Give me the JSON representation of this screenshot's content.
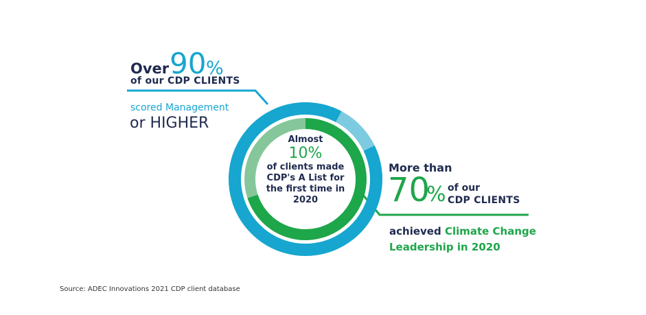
{
  "left_callout": {
    "prefix": "Over",
    "value": "90",
    "unit": "%",
    "line2": "of our CDP CLIENTS",
    "line3": "scored Management",
    "line4": "or HIGHER"
  },
  "center_callout": {
    "prefix": "Almost",
    "value": "10%",
    "line": "of clients made CDP's A List for the first time in 2020"
  },
  "right_callout": {
    "prefix": "More than",
    "value": "70",
    "unit": "%",
    "line2a": "of our",
    "line2b": "CDP CLIENTS",
    "line3a": "achieved",
    "line3b": "Climate Change",
    "line4": "Leadership in 2020"
  },
  "source": "Source: ADEC Innovations 2021 CDP client database",
  "colors": {
    "navy": "#1f2a4f",
    "blue": "#16a6cf",
    "light_blue": "#7dcbe0",
    "green": "#1ea64a",
    "light_green": "#85c79b"
  },
  "chart_data": {
    "type": "pie",
    "rings": [
      {
        "ring": "outer",
        "segments": [
          {
            "value": 90,
            "color": "#16a6cf"
          },
          {
            "value": 10,
            "color": "#7dcbe0"
          }
        ]
      },
      {
        "ring": "inner",
        "segments": [
          {
            "value": 70,
            "color": "#1ea64a"
          },
          {
            "value": 30,
            "color": "#85c79b"
          }
        ]
      }
    ]
  }
}
